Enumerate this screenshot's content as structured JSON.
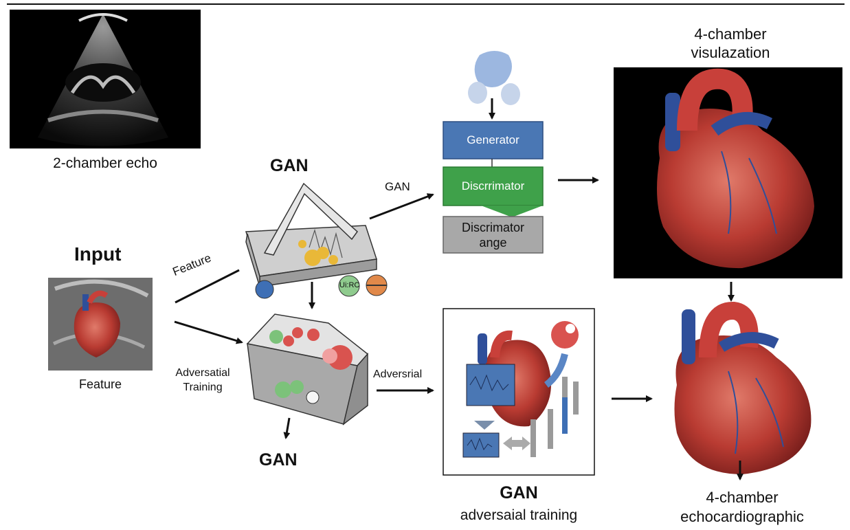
{
  "labels": {
    "echo_2ch": "2-chamber echo",
    "gan_top": "GAN",
    "gan_arrow": "GAN",
    "input_title": "Input",
    "feature_diag": "Feature",
    "feature_below": "Feature",
    "adv_training_left_1": "Adversatial",
    "adv_training_left_2": "Training",
    "gan_bottom_left": "GAN",
    "adversrial": "Adversrial",
    "generator": "Generator",
    "discriminator": "Discrrimator",
    "discriminator_ange_1": "Discrimator",
    "discriminator_ange_2": "ange",
    "four_ch_vis_1": "4-chamber",
    "four_ch_vis_2": "visulazation",
    "gan_bottom_mid": "GAN",
    "adv_training_mid": "adversaial training",
    "four_ch_echo_1": "4-chamber",
    "four_ch_echo_2": "echocardiographic",
    "node_label": "Ui:RC"
  },
  "colors": {
    "generator_blue": "#4a77b4",
    "discriminator_green": "#3fa14a",
    "gray_box": "#a8a8a8",
    "heart_red": "#c8403a",
    "vessel_blue": "#2f4f9a"
  }
}
